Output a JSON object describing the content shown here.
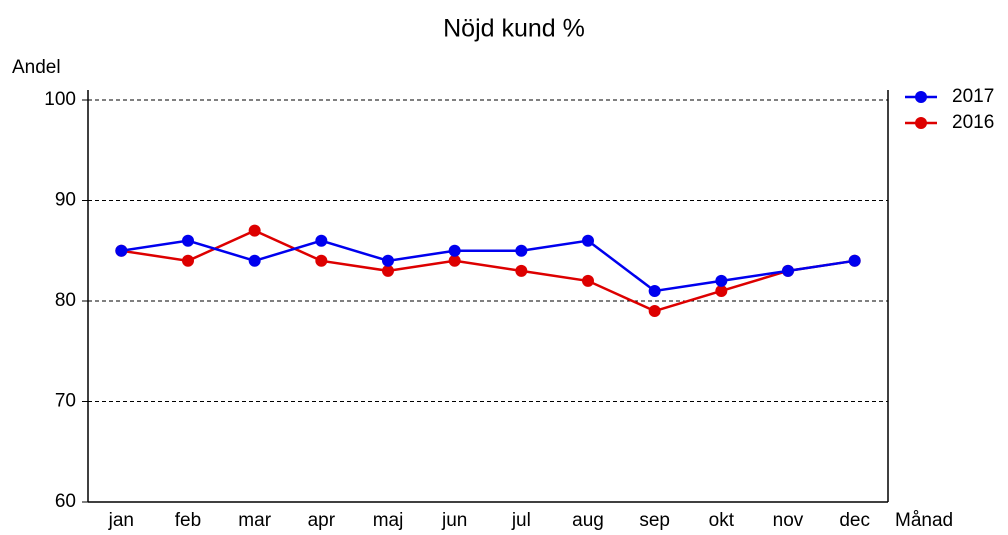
{
  "chart_data": {
    "type": "line",
    "title": "Nöjd kund %",
    "y_label": "Andel",
    "x_label": "Månad",
    "categories": [
      "jan",
      "feb",
      "mar",
      "apr",
      "maj",
      "jun",
      "jul",
      "aug",
      "sep",
      "okt",
      "nov",
      "dec"
    ],
    "series": [
      {
        "name": "2017",
        "color": "#0000ee",
        "values": [
          85,
          86,
          84,
          86,
          84,
          85,
          85,
          86,
          81,
          82,
          83,
          84
        ]
      },
      {
        "name": "2016",
        "color": "#dd0000",
        "values": [
          85,
          84,
          87,
          84,
          83,
          84,
          83,
          82,
          79,
          81,
          83,
          84
        ]
      }
    ],
    "ylim": [
      60,
      100
    ],
    "yticks": [
      60,
      70,
      80,
      90,
      100
    ],
    "grid": true,
    "legend": "right"
  }
}
